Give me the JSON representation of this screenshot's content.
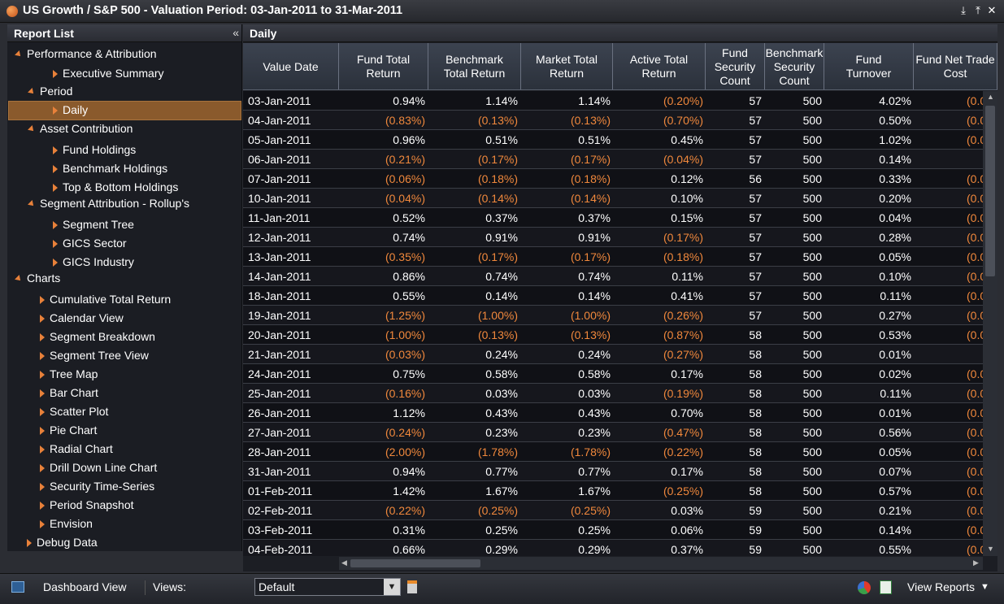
{
  "window": {
    "title": "US Growth / S&P 500 - Valuation Period: 03-Jan-2011 to 31-Mar-2011",
    "buttons": [
      "⤓",
      "⤒",
      "✕"
    ]
  },
  "sidebar": {
    "title": "Report List",
    "collapse_icon": "«",
    "items": [
      {
        "label": "Performance & Attribution",
        "level": 0,
        "state": "open"
      },
      {
        "label": "Executive Summary",
        "level": 2,
        "state": "leaf"
      },
      {
        "label": "Period",
        "level": 1,
        "state": "open"
      },
      {
        "label": "Daily",
        "level": 2,
        "state": "leaf",
        "selected": true
      },
      {
        "label": "Asset Contribution",
        "level": 1,
        "state": "open"
      },
      {
        "label": "Fund Holdings",
        "level": 2,
        "state": "leaf"
      },
      {
        "label": "Benchmark Holdings",
        "level": 2,
        "state": "leaf"
      },
      {
        "label": "Top & Bottom Holdings",
        "level": 2,
        "state": "leaf"
      },
      {
        "label": "Segment Attribution - Rollup's",
        "level": 1,
        "state": "open"
      },
      {
        "label": "Segment Tree",
        "level": 2,
        "state": "leaf"
      },
      {
        "label": "GICS Sector",
        "level": 2,
        "state": "leaf"
      },
      {
        "label": "GICS Industry",
        "level": 2,
        "state": "leaf"
      },
      {
        "label": "Charts",
        "level": 0,
        "state": "open"
      },
      {
        "label": "Cumulative Total Return",
        "level": 1,
        "state": "leaf"
      },
      {
        "label": "Calendar View",
        "level": 1,
        "state": "leaf"
      },
      {
        "label": "Segment Breakdown",
        "level": 1,
        "state": "leaf"
      },
      {
        "label": "Segment Tree View",
        "level": 1,
        "state": "leaf"
      },
      {
        "label": "Tree Map",
        "level": 1,
        "state": "leaf"
      },
      {
        "label": "Bar Chart",
        "level": 1,
        "state": "leaf"
      },
      {
        "label": "Scatter Plot",
        "level": 1,
        "state": "leaf"
      },
      {
        "label": "Pie Chart",
        "level": 1,
        "state": "leaf"
      },
      {
        "label": "Radial Chart",
        "level": 1,
        "state": "leaf"
      },
      {
        "label": "Drill Down Line Chart",
        "level": 1,
        "state": "leaf"
      },
      {
        "label": "Security Time-Series",
        "level": 1,
        "state": "leaf"
      },
      {
        "label": "Period Snapshot",
        "level": 1,
        "state": "leaf"
      },
      {
        "label": "Envision",
        "level": 1,
        "state": "leaf"
      },
      {
        "label": "Debug Data",
        "level": 0,
        "state": "leaf"
      }
    ]
  },
  "main": {
    "title": "Daily",
    "columns": [
      "Value Date",
      "Fund Total Return",
      "Benchmark Total Return",
      "Market Total Return",
      "Active Total Return",
      "Fund Security Count",
      "Benchmark Security Count",
      "Fund Turnover",
      "Fund Net Trade Cost"
    ],
    "column_header_lines": [
      [
        "Value Date"
      ],
      [
        "Fund Total",
        "Return"
      ],
      [
        "Benchmark",
        "Total Return"
      ],
      [
        "Market Total",
        "Return"
      ],
      [
        "Active Total",
        "Return"
      ],
      [
        "Fund",
        "Security",
        "Count"
      ],
      [
        "Benchmark",
        "Security",
        "Count"
      ],
      [
        "Fund",
        "Turnover"
      ],
      [
        "Fund Net Trade",
        "Cost"
      ]
    ],
    "rows": [
      [
        "03-Jan-2011",
        "0.94%",
        "1.14%",
        "1.14%",
        "(0.20%)",
        "57",
        "500",
        "4.02%",
        "(0.0"
      ],
      [
        "04-Jan-2011",
        "(0.83%)",
        "(0.13%)",
        "(0.13%)",
        "(0.70%)",
        "57",
        "500",
        "0.50%",
        "(0.0"
      ],
      [
        "05-Jan-2011",
        "0.96%",
        "0.51%",
        "0.51%",
        "0.45%",
        "57",
        "500",
        "1.02%",
        "(0.0"
      ],
      [
        "06-Jan-2011",
        "(0.21%)",
        "(0.17%)",
        "(0.17%)",
        "(0.04%)",
        "57",
        "500",
        "0.14%",
        ""
      ],
      [
        "07-Jan-2011",
        "(0.06%)",
        "(0.18%)",
        "(0.18%)",
        "0.12%",
        "56",
        "500",
        "0.33%",
        "(0.0"
      ],
      [
        "10-Jan-2011",
        "(0.04%)",
        "(0.14%)",
        "(0.14%)",
        "0.10%",
        "57",
        "500",
        "0.20%",
        "(0.0"
      ],
      [
        "11-Jan-2011",
        "0.52%",
        "0.37%",
        "0.37%",
        "0.15%",
        "57",
        "500",
        "0.04%",
        "(0.0"
      ],
      [
        "12-Jan-2011",
        "0.74%",
        "0.91%",
        "0.91%",
        "(0.17%)",
        "57",
        "500",
        "0.28%",
        "(0.0"
      ],
      [
        "13-Jan-2011",
        "(0.35%)",
        "(0.17%)",
        "(0.17%)",
        "(0.18%)",
        "57",
        "500",
        "0.05%",
        "(0.0"
      ],
      [
        "14-Jan-2011",
        "0.86%",
        "0.74%",
        "0.74%",
        "0.11%",
        "57",
        "500",
        "0.10%",
        "(0.0"
      ],
      [
        "18-Jan-2011",
        "0.55%",
        "0.14%",
        "0.14%",
        "0.41%",
        "57",
        "500",
        "0.11%",
        "(0.0"
      ],
      [
        "19-Jan-2011",
        "(1.25%)",
        "(1.00%)",
        "(1.00%)",
        "(0.26%)",
        "57",
        "500",
        "0.27%",
        "(0.0"
      ],
      [
        "20-Jan-2011",
        "(1.00%)",
        "(0.13%)",
        "(0.13%)",
        "(0.87%)",
        "58",
        "500",
        "0.53%",
        "(0.0"
      ],
      [
        "21-Jan-2011",
        "(0.03%)",
        "0.24%",
        "0.24%",
        "(0.27%)",
        "58",
        "500",
        "0.01%",
        ""
      ],
      [
        "24-Jan-2011",
        "0.75%",
        "0.58%",
        "0.58%",
        "0.17%",
        "58",
        "500",
        "0.02%",
        "(0.0"
      ],
      [
        "25-Jan-2011",
        "(0.16%)",
        "0.03%",
        "0.03%",
        "(0.19%)",
        "58",
        "500",
        "0.11%",
        "(0.0"
      ],
      [
        "26-Jan-2011",
        "1.12%",
        "0.43%",
        "0.43%",
        "0.70%",
        "58",
        "500",
        "0.01%",
        "(0.0"
      ],
      [
        "27-Jan-2011",
        "(0.24%)",
        "0.23%",
        "0.23%",
        "(0.47%)",
        "58",
        "500",
        "0.56%",
        "(0.0"
      ],
      [
        "28-Jan-2011",
        "(2.00%)",
        "(1.78%)",
        "(1.78%)",
        "(0.22%)",
        "58",
        "500",
        "0.05%",
        "(0.0"
      ],
      [
        "31-Jan-2011",
        "0.94%",
        "0.77%",
        "0.77%",
        "0.17%",
        "58",
        "500",
        "0.07%",
        "(0.0"
      ],
      [
        "01-Feb-2011",
        "1.42%",
        "1.67%",
        "1.67%",
        "(0.25%)",
        "58",
        "500",
        "0.57%",
        "(0.0"
      ],
      [
        "02-Feb-2011",
        "(0.22%)",
        "(0.25%)",
        "(0.25%)",
        "0.03%",
        "59",
        "500",
        "0.21%",
        "(0.0"
      ],
      [
        "03-Feb-2011",
        "0.31%",
        "0.25%",
        "0.25%",
        "0.06%",
        "59",
        "500",
        "0.14%",
        "(0.0"
      ],
      [
        "04-Feb-2011",
        "0.66%",
        "0.29%",
        "0.29%",
        "0.37%",
        "59",
        "500",
        "0.55%",
        "(0.0"
      ]
    ]
  },
  "footer": {
    "dashboard_label": "Dashboard View",
    "views_label": "Views:",
    "views_value": "Default",
    "view_reports_label": "View Reports"
  },
  "colors": {
    "negative": "#f0883c",
    "selected": "#8a5a2c",
    "accent": "#e8813a"
  }
}
